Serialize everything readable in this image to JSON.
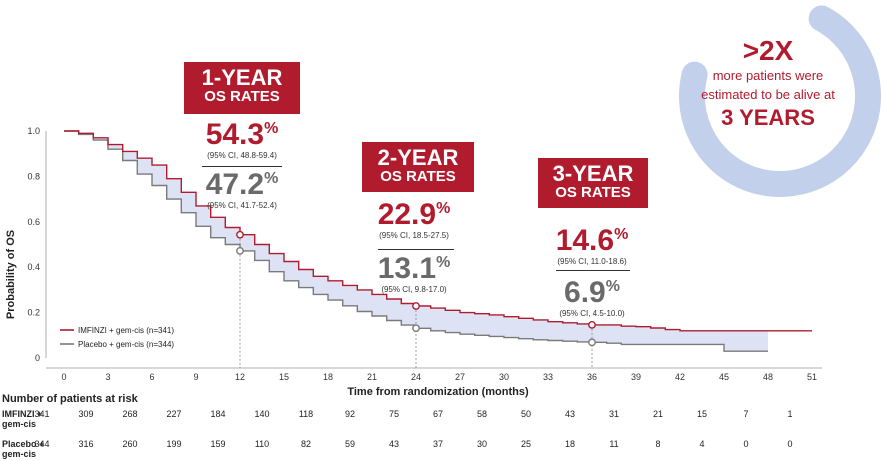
{
  "chart_data": {
    "type": "line",
    "title": "",
    "xlabel": "Time from randomization (months)",
    "ylabel": "Probability of OS",
    "xlim": [
      0,
      51
    ],
    "ylim": [
      0,
      1.0
    ],
    "xticks": [
      "0",
      "3",
      "6",
      "9",
      "12",
      "15",
      "18",
      "21",
      "24",
      "27",
      "30",
      "33",
      "36",
      "39",
      "42",
      "45",
      "48",
      "51"
    ],
    "yticks": [
      "0",
      "0.2",
      "0.4",
      "0.6",
      "0.8",
      "1.0"
    ],
    "grid": false,
    "legend_position": "bottom-left",
    "series": [
      {
        "name": "IMFINZI + gem-cis (n=341)",
        "color": "#b01c2e",
        "points": [
          [
            0,
            1.0
          ],
          [
            1,
            0.99
          ],
          [
            2,
            0.97
          ],
          [
            3,
            0.94
          ],
          [
            4,
            0.91
          ],
          [
            5,
            0.88
          ],
          [
            6,
            0.85
          ],
          [
            7,
            0.79
          ],
          [
            8,
            0.73
          ],
          [
            9,
            0.67
          ],
          [
            10,
            0.62
          ],
          [
            11,
            0.575
          ],
          [
            12,
            0.543
          ],
          [
            13,
            0.5
          ],
          [
            14,
            0.46
          ],
          [
            15,
            0.425
          ],
          [
            16,
            0.39
          ],
          [
            17,
            0.36
          ],
          [
            18,
            0.34
          ],
          [
            19,
            0.32
          ],
          [
            20,
            0.3
          ],
          [
            21,
            0.28
          ],
          [
            22,
            0.26
          ],
          [
            23,
            0.24
          ],
          [
            24,
            0.229
          ],
          [
            25,
            0.22
          ],
          [
            26,
            0.21
          ],
          [
            27,
            0.2
          ],
          [
            28,
            0.195
          ],
          [
            29,
            0.19
          ],
          [
            30,
            0.182
          ],
          [
            31,
            0.175
          ],
          [
            32,
            0.168
          ],
          [
            33,
            0.16
          ],
          [
            34,
            0.155
          ],
          [
            35,
            0.15
          ],
          [
            36,
            0.146
          ],
          [
            37,
            0.146
          ],
          [
            38,
            0.14
          ],
          [
            39,
            0.138
          ],
          [
            40,
            0.132
          ],
          [
            41,
            0.125
          ],
          [
            42,
            0.12
          ],
          [
            45,
            0.12
          ],
          [
            48,
            0.12
          ],
          [
            51,
            0.12
          ]
        ]
      },
      {
        "name": "Placebo + gem-cis (n=344)",
        "color": "#7a7a7a",
        "points": [
          [
            0,
            1.0
          ],
          [
            1,
            0.985
          ],
          [
            2,
            0.96
          ],
          [
            3,
            0.92
          ],
          [
            4,
            0.87
          ],
          [
            5,
            0.81
          ],
          [
            6,
            0.76
          ],
          [
            7,
            0.7
          ],
          [
            8,
            0.64
          ],
          [
            9,
            0.58
          ],
          [
            10,
            0.53
          ],
          [
            11,
            0.5
          ],
          [
            12,
            0.472
          ],
          [
            13,
            0.43
          ],
          [
            14,
            0.38
          ],
          [
            15,
            0.34
          ],
          [
            16,
            0.31
          ],
          [
            17,
            0.28
          ],
          [
            18,
            0.255
          ],
          [
            19,
            0.23
          ],
          [
            20,
            0.205
          ],
          [
            21,
            0.185
          ],
          [
            22,
            0.165
          ],
          [
            23,
            0.145
          ],
          [
            24,
            0.131
          ],
          [
            25,
            0.12
          ],
          [
            26,
            0.112
          ],
          [
            27,
            0.105
          ],
          [
            28,
            0.1
          ],
          [
            29,
            0.095
          ],
          [
            30,
            0.09
          ],
          [
            31,
            0.085
          ],
          [
            32,
            0.08
          ],
          [
            33,
            0.077
          ],
          [
            34,
            0.074
          ],
          [
            35,
            0.071
          ],
          [
            36,
            0.069
          ],
          [
            37,
            0.065
          ],
          [
            38,
            0.06
          ],
          [
            39,
            0.06
          ],
          [
            40,
            0.06
          ],
          [
            41,
            0.06
          ],
          [
            42,
            0.06
          ],
          [
            44,
            0.06
          ],
          [
            45,
            0.03
          ],
          [
            48,
            0.03
          ]
        ]
      }
    ],
    "markers": [
      {
        "x": 12,
        "y": 0.543,
        "series": 0
      },
      {
        "x": 12,
        "y": 0.472,
        "series": 1
      },
      {
        "x": 24,
        "y": 0.229,
        "series": 0
      },
      {
        "x": 24,
        "y": 0.131,
        "series": 1
      },
      {
        "x": 36,
        "y": 0.146,
        "series": 0
      },
      {
        "x": 36,
        "y": 0.069,
        "series": 1
      }
    ],
    "annotations": [
      {
        "label_line1": "1-YEAR",
        "label_line2": "OS RATES",
        "imfinzi": "54.3",
        "imfinzi_ci": "(95% CI, 48.8-59.4)",
        "placebo": "47.2",
        "placebo_ci": "(95% CI, 41.7-52.4)"
      },
      {
        "label_line1": "2-YEAR",
        "label_line2": "OS RATES",
        "imfinzi": "22.9",
        "imfinzi_ci": "(95% CI, 18.5-27.5)",
        "placebo": "13.1",
        "placebo_ci": "(95% CI, 9.8-17.0)"
      },
      {
        "label_line1": "3-YEAR",
        "label_line2": "OS RATES",
        "imfinzi": "14.6",
        "imfinzi_ci": "(95% CI, 11.0-18.6)",
        "placebo": "6.9",
        "placebo_ci": "(95% CI, 4.5-10.0)"
      }
    ],
    "percent_sign": "%",
    "risk_table": {
      "title": "Number of patients at risk",
      "rows": [
        {
          "label_line1": "IMFINZI +",
          "label_line2": "gem-cis",
          "values": [
            "341",
            "309",
            "268",
            "227",
            "184",
            "140",
            "118",
            "92",
            "75",
            "67",
            "58",
            "50",
            "43",
            "31",
            "21",
            "15",
            "7",
            "1"
          ]
        },
        {
          "label_line1": "Placebo +",
          "label_line2": "gem-cis",
          "values": [
            "344",
            "316",
            "260",
            "199",
            "159",
            "110",
            "82",
            "59",
            "43",
            "37",
            "30",
            "25",
            "18",
            "11",
            "8",
            "4",
            "0",
            "0"
          ]
        }
      ]
    },
    "shade_color": "#dde3f4"
  },
  "callout": {
    "headline": ">2X",
    "line1": "more patients were",
    "line2": "estimated to be alive at",
    "highlight": "3 YEARS",
    "ring_color": "#b8c8e8"
  }
}
